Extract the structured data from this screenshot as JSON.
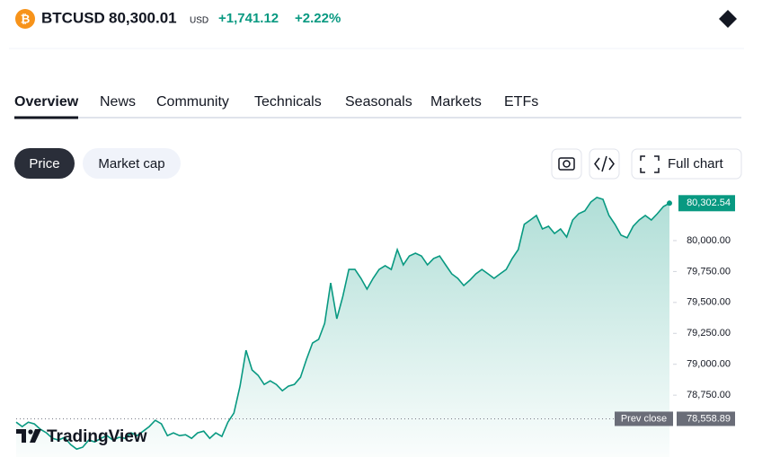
{
  "header": {
    "symbol": "BTCUSD",
    "price": "80,300.01",
    "currency": "USD",
    "change": "+1,741.12",
    "change_percent": "+2.22%"
  },
  "tabs": [
    "Overview",
    "News",
    "Community",
    "Technicals",
    "Seasonals",
    "Markets",
    "ETFs"
  ],
  "buttons": {
    "price": "Price",
    "market_cap": "Market cap",
    "full_chart": "Full chart"
  },
  "logo": "TradingView",
  "chart_data": {
    "type": "line",
    "color": "#089981",
    "values": [
      78532,
      78496,
      78532,
      78518,
      78474,
      78445,
      78401,
      78387,
      78409,
      78350,
      78314,
      78329,
      78387,
      78372,
      78401,
      78423,
      78387,
      78409,
      78401,
      78445,
      78423,
      78459,
      78496,
      78547,
      78518,
      78423,
      78445,
      78423,
      78430,
      78401,
      78445,
      78459,
      78401,
      78445,
      78416,
      78532,
      78605,
      78823,
      79113,
      78954,
      78910,
      78837,
      78866,
      78837,
      78786,
      78823,
      78837,
      78895,
      79041,
      79172,
      79201,
      79331,
      79658,
      79368,
      79549,
      79767,
      79767,
      79695,
      79608,
      79695,
      79767,
      79797,
      79767,
      79927,
      79804,
      79876,
      79898,
      79876,
      79804,
      79855,
      79876,
      79804,
      79731,
      79695,
      79637,
      79680,
      79731,
      79767,
      79731,
      79695,
      79731,
      79767,
      79855,
      79927,
      80131,
      80167,
      80203,
      80094,
      80116,
      80058,
      80094,
      80029,
      80167,
      80218,
      80240,
      80312,
      80349,
      80334,
      80203,
      80131,
      80044,
      80022,
      80116,
      80167,
      80203,
      80167,
      80218,
      80276,
      80302.54
    ],
    "ylim": [
      78250,
      80450
    ],
    "yticks": [
      {
        "value": 78750,
        "label": "78,750.00"
      },
      {
        "value": 79000,
        "label": "79,000.00"
      },
      {
        "value": 79250,
        "label": "79,250.00"
      },
      {
        "value": 79500,
        "label": "79,500.00"
      },
      {
        "value": 79750,
        "label": "79,750.00"
      },
      {
        "value": 80000,
        "label": "80,000.00"
      }
    ],
    "last_price": {
      "value": 80302.54,
      "label": "80,302.54"
    },
    "prev_close": {
      "value": 78558.89,
      "label": "78,558.89",
      "name": "Prev close"
    }
  }
}
